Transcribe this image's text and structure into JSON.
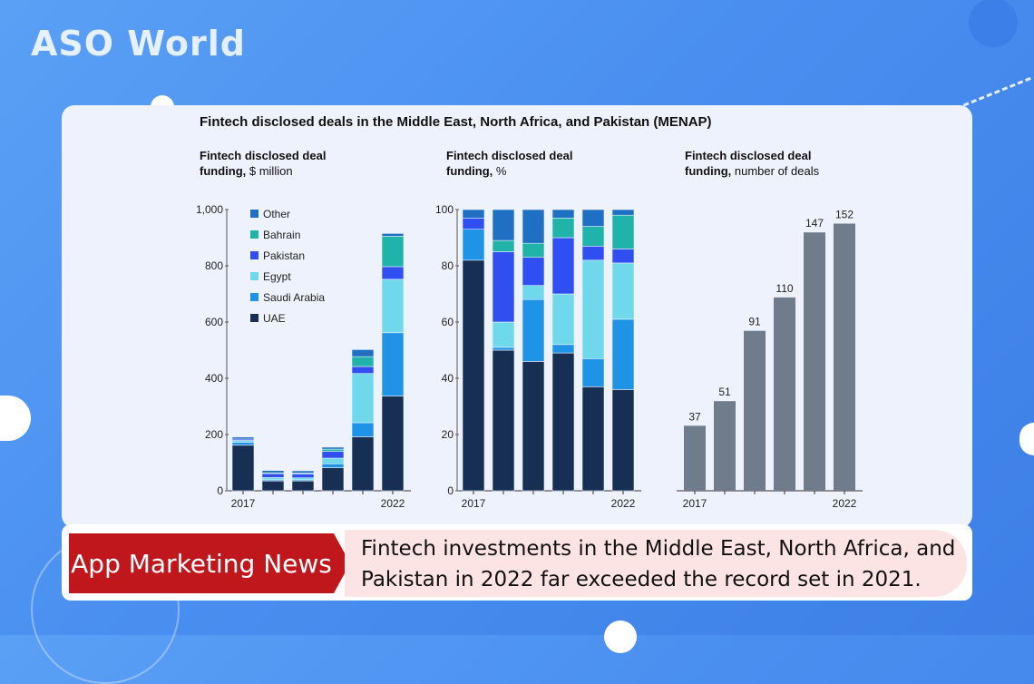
{
  "brand": {
    "logo": "ASO World"
  },
  "figure": {
    "title": "Fintech disclosed deals in the Middle East, North Africa, and Pakistan (MENAP)"
  },
  "news": {
    "badge": "App Marketing News",
    "headline": "Fintech investments in the Middle East, North Africa, and Pakistan in 2022 far exceeded the record set in 2021."
  },
  "colors": {
    "UAE": "#162f52",
    "Saudi Arabia": "#1f93e6",
    "Egypt": "#6fd9eb",
    "Pakistan": "#2f4ff0",
    "Bahrain": "#1fb3aa",
    "Other": "#1f6fc2",
    "count_bar": "#707b8c"
  },
  "chart_data": [
    {
      "type": "bar",
      "stacked": true,
      "subtitle_bold": "Fintech disclosed deal funding,",
      "subtitle_rest": " $ million",
      "x_labels": [
        "2017",
        "",
        "",
        "",
        "",
        "2022"
      ],
      "ylim": [
        0,
        1000
      ],
      "yticks": [
        "0",
        "200",
        "400",
        "600",
        "800",
        "1,000"
      ],
      "ytick_values": [
        0,
        200,
        400,
        600,
        800,
        1000
      ],
      "legend_order": [
        "Other",
        "Bahrain",
        "Pakistan",
        "Egypt",
        "Saudi Arabia",
        "UAE"
      ],
      "series": [
        {
          "name": "UAE",
          "values": [
            162,
            35,
            35,
            82,
            192,
            337
          ]
        },
        {
          "name": "Saudi Arabia",
          "values": [
            10,
            4,
            4,
            14,
            50,
            225
          ]
        },
        {
          "name": "Egypt",
          "values": [
            7,
            8,
            7,
            20,
            175,
            190
          ]
        },
        {
          "name": "Pakistan",
          "values": [
            5,
            14,
            14,
            24,
            25,
            45
          ]
        },
        {
          "name": "Bahrain",
          "values": [
            0,
            3,
            3,
            8,
            35,
            108
          ]
        },
        {
          "name": "Other",
          "values": [
            7,
            8,
            8,
            7,
            25,
            10
          ]
        }
      ]
    },
    {
      "type": "bar",
      "stacked": true,
      "subtitle_bold": "Fintech disclosed deal funding,",
      "subtitle_rest": " %",
      "x_labels": [
        "2017",
        "",
        "",
        "",
        "",
        "2022"
      ],
      "ylim": [
        0,
        100
      ],
      "yticks": [
        "0",
        "20",
        "40",
        "60",
        "80",
        "100"
      ],
      "ytick_values": [
        0,
        20,
        40,
        60,
        80,
        100
      ],
      "series": [
        {
          "name": "UAE",
          "values": [
            82,
            50,
            46,
            49,
            37,
            36
          ]
        },
        {
          "name": "Saudi Arabia",
          "values": [
            11,
            1,
            22,
            3,
            10,
            25
          ]
        },
        {
          "name": "Egypt",
          "values": [
            0,
            9,
            5,
            18,
            35,
            20
          ]
        },
        {
          "name": "Pakistan",
          "values": [
            4,
            25,
            10,
            20,
            5,
            5
          ]
        },
        {
          "name": "Bahrain",
          "values": [
            0,
            4,
            5,
            7,
            7,
            12
          ]
        },
        {
          "name": "Other",
          "values": [
            3,
            11,
            12,
            3,
            6,
            2
          ]
        }
      ]
    },
    {
      "type": "bar",
      "subtitle_bold": "Fintech disclosed deal funding,",
      "subtitle_rest": " number of deals",
      "x_labels": [
        "2017",
        "",
        "",
        "",
        "",
        "2022"
      ],
      "ylim": [
        0,
        160
      ],
      "values": [
        37,
        51,
        91,
        110,
        147,
        152
      ],
      "data_labels": [
        "37",
        "51",
        "91",
        "110",
        "147",
        "152"
      ]
    }
  ]
}
